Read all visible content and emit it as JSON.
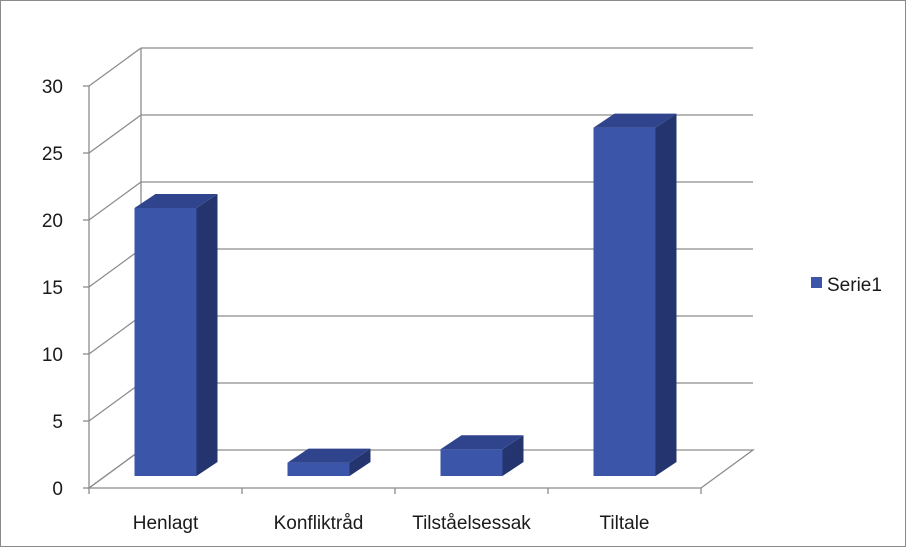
{
  "chart_data": {
    "type": "bar",
    "categories": [
      "Henlagt",
      "Konfliktråd",
      "Tilståelsessak",
      "Tiltale"
    ],
    "series": [
      {
        "name": "Serie1",
        "values": [
          20,
          1,
          2,
          26
        ],
        "color": "#3b55a8"
      }
    ],
    "y_ticks": [
      "0",
      "5",
      "10",
      "15",
      "20",
      "25",
      "30"
    ],
    "ylim": [
      0,
      30
    ],
    "title": "",
    "xlabel": "",
    "ylabel": "",
    "grid": true,
    "legend_position": "right",
    "style": "3d-column"
  }
}
